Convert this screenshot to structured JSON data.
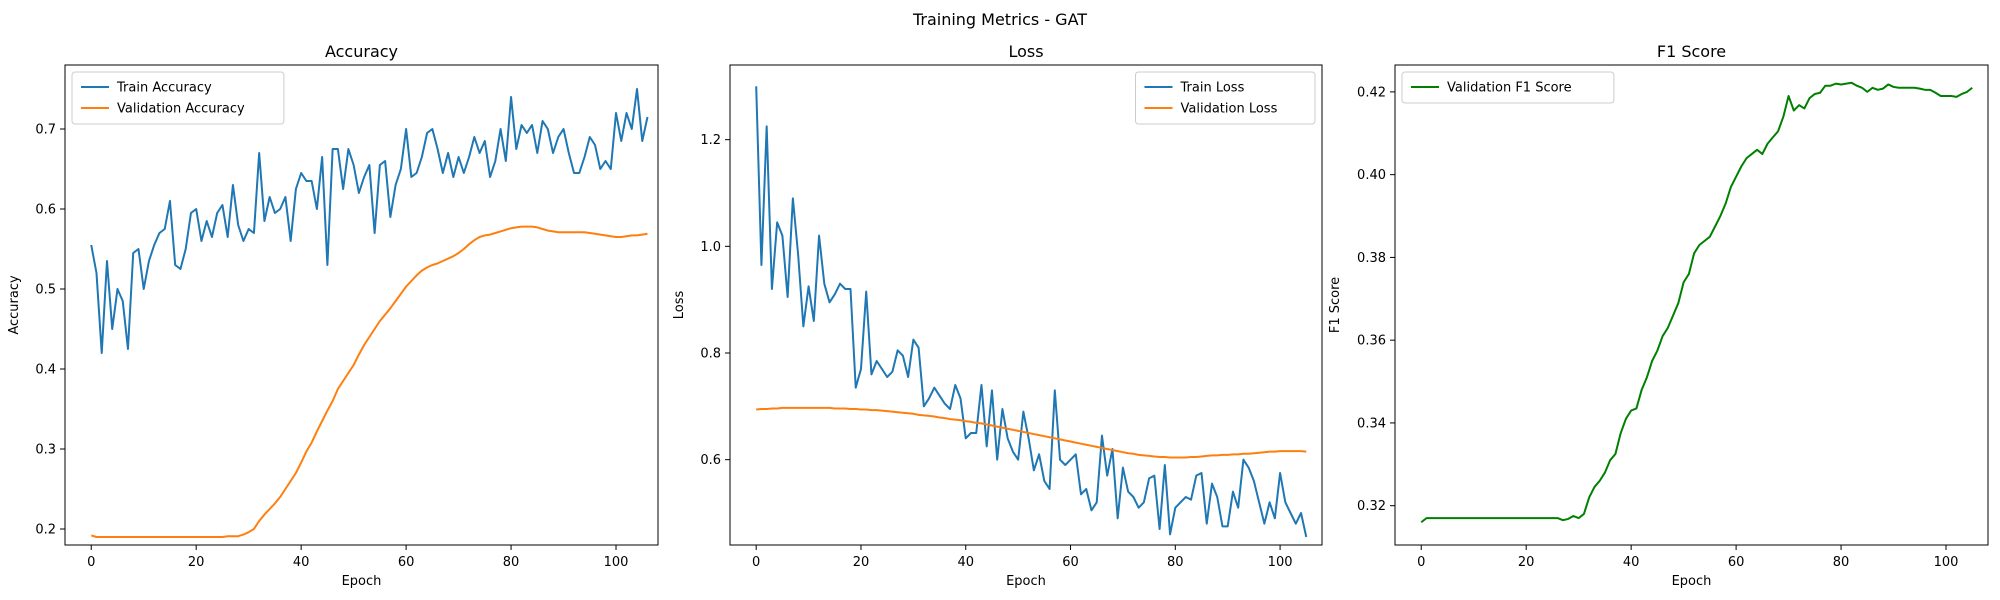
{
  "figure": {
    "title": "Training Metrics - GAT"
  },
  "chart_data": [
    {
      "type": "line",
      "title": "Accuracy",
      "xlabel": "Epoch",
      "ylabel": "Accuracy",
      "xlim": [
        -5,
        108
      ],
      "ylim": [
        0.18,
        0.78
      ],
      "xticks": [
        0,
        20,
        40,
        60,
        80,
        100
      ],
      "yticks": [
        0.2,
        0.3,
        0.4,
        0.5,
        0.6,
        0.7
      ],
      "tick_decimals": 1,
      "legend_position": "upper-left",
      "series": [
        {
          "name": "Train Accuracy",
          "color": "#1f77b4",
          "values": [
            0.555,
            0.52,
            0.42,
            0.535,
            0.45,
            0.5,
            0.485,
            0.425,
            0.545,
            0.55,
            0.5,
            0.535,
            0.555,
            0.57,
            0.575,
            0.61,
            0.53,
            0.525,
            0.55,
            0.595,
            0.6,
            0.56,
            0.585,
            0.565,
            0.595,
            0.605,
            0.565,
            0.63,
            0.58,
            0.56,
            0.575,
            0.57,
            0.67,
            0.585,
            0.615,
            0.595,
            0.6,
            0.615,
            0.56,
            0.625,
            0.645,
            0.635,
            0.635,
            0.6,
            0.665,
            0.53,
            0.675,
            0.675,
            0.625,
            0.675,
            0.655,
            0.62,
            0.64,
            0.655,
            0.57,
            0.655,
            0.66,
            0.59,
            0.63,
            0.65,
            0.7,
            0.64,
            0.645,
            0.665,
            0.695,
            0.7,
            0.675,
            0.645,
            0.67,
            0.64,
            0.665,
            0.645,
            0.665,
            0.69,
            0.67,
            0.685,
            0.64,
            0.66,
            0.7,
            0.66,
            0.74,
            0.675,
            0.705,
            0.695,
            0.705,
            0.67,
            0.71,
            0.7,
            0.67,
            0.69,
            0.7,
            0.67,
            0.645,
            0.645,
            0.665,
            0.69,
            0.68,
            0.65,
            0.66,
            0.65,
            0.72,
            0.685,
            0.72,
            0.7,
            0.75,
            0.685,
            0.715
          ]
        },
        {
          "name": "Validation Accuracy",
          "color": "#ff7f0e",
          "values": [
            0.192,
            0.19,
            0.19,
            0.19,
            0.19,
            0.19,
            0.19,
            0.19,
            0.19,
            0.19,
            0.19,
            0.19,
            0.19,
            0.19,
            0.19,
            0.19,
            0.19,
            0.19,
            0.19,
            0.19,
            0.19,
            0.19,
            0.19,
            0.19,
            0.19,
            0.19,
            0.191,
            0.191,
            0.191,
            0.193,
            0.196,
            0.2,
            0.21,
            0.218,
            0.225,
            0.232,
            0.24,
            0.25,
            0.26,
            0.27,
            0.283,
            0.297,
            0.308,
            0.322,
            0.335,
            0.348,
            0.36,
            0.375,
            0.385,
            0.395,
            0.405,
            0.418,
            0.43,
            0.44,
            0.45,
            0.46,
            0.468,
            0.476,
            0.485,
            0.494,
            0.503,
            0.51,
            0.517,
            0.523,
            0.527,
            0.53,
            0.532,
            0.535,
            0.538,
            0.541,
            0.545,
            0.55,
            0.556,
            0.561,
            0.565,
            0.567,
            0.568,
            0.57,
            0.572,
            0.574,
            0.576,
            0.577,
            0.578,
            0.578,
            0.578,
            0.577,
            0.575,
            0.573,
            0.572,
            0.571,
            0.571,
            0.571,
            0.571,
            0.571,
            0.571,
            0.57,
            0.569,
            0.568,
            0.567,
            0.566,
            0.565,
            0.565,
            0.566,
            0.567,
            0.567,
            0.568,
            0.569
          ]
        }
      ]
    },
    {
      "type": "line",
      "title": "Loss",
      "xlabel": "Epoch",
      "ylabel": "Loss",
      "xlim": [
        -5,
        108
      ],
      "ylim": [
        0.44,
        1.34
      ],
      "xticks": [
        0,
        20,
        40,
        60,
        80,
        100
      ],
      "yticks": [
        0.6,
        0.8,
        1.0,
        1.2
      ],
      "tick_decimals": 1,
      "legend_position": "upper-right",
      "series": [
        {
          "name": "Train Loss",
          "color": "#1f77b4",
          "values": [
            1.3,
            0.965,
            1.225,
            0.92,
            1.045,
            1.02,
            0.905,
            1.09,
            0.985,
            0.85,
            0.925,
            0.86,
            1.02,
            0.93,
            0.895,
            0.91,
            0.93,
            0.92,
            0.92,
            0.735,
            0.77,
            0.915,
            0.76,
            0.785,
            0.77,
            0.755,
            0.765,
            0.805,
            0.795,
            0.755,
            0.825,
            0.81,
            0.7,
            0.715,
            0.735,
            0.72,
            0.705,
            0.695,
            0.74,
            0.715,
            0.64,
            0.65,
            0.65,
            0.74,
            0.625,
            0.73,
            0.6,
            0.695,
            0.64,
            0.615,
            0.6,
            0.69,
            0.64,
            0.58,
            0.61,
            0.56,
            0.545,
            0.73,
            0.6,
            0.59,
            0.6,
            0.61,
            0.535,
            0.545,
            0.505,
            0.52,
            0.645,
            0.57,
            0.62,
            0.49,
            0.585,
            0.54,
            0.53,
            0.51,
            0.52,
            0.565,
            0.57,
            0.47,
            0.59,
            0.46,
            0.51,
            0.52,
            0.53,
            0.525,
            0.57,
            0.575,
            0.48,
            0.555,
            0.53,
            0.475,
            0.475,
            0.54,
            0.51,
            0.6,
            0.585,
            0.56,
            0.52,
            0.48,
            0.52,
            0.49,
            0.575,
            0.52,
            0.5,
            0.48,
            0.5,
            0.455
          ]
        },
        {
          "name": "Validation Loss",
          "color": "#ff7f0e",
          "values": [
            0.694,
            0.695,
            0.695,
            0.696,
            0.696,
            0.697,
            0.697,
            0.697,
            0.697,
            0.697,
            0.697,
            0.697,
            0.697,
            0.697,
            0.697,
            0.696,
            0.696,
            0.696,
            0.695,
            0.695,
            0.694,
            0.694,
            0.693,
            0.693,
            0.692,
            0.691,
            0.69,
            0.689,
            0.688,
            0.687,
            0.686,
            0.684,
            0.683,
            0.682,
            0.681,
            0.679,
            0.678,
            0.676,
            0.675,
            0.674,
            0.672,
            0.671,
            0.669,
            0.668,
            0.666,
            0.664,
            0.662,
            0.66,
            0.658,
            0.656,
            0.654,
            0.652,
            0.65,
            0.648,
            0.646,
            0.644,
            0.642,
            0.64,
            0.638,
            0.636,
            0.634,
            0.632,
            0.63,
            0.628,
            0.626,
            0.624,
            0.622,
            0.62,
            0.618,
            0.616,
            0.614,
            0.612,
            0.611,
            0.609,
            0.608,
            0.607,
            0.606,
            0.605,
            0.605,
            0.604,
            0.604,
            0.604,
            0.604,
            0.605,
            0.605,
            0.606,
            0.607,
            0.608,
            0.608,
            0.609,
            0.609,
            0.61,
            0.61,
            0.611,
            0.611,
            0.612,
            0.613,
            0.614,
            0.615,
            0.615,
            0.616,
            0.616,
            0.616,
            0.616,
            0.616,
            0.615
          ]
        }
      ]
    },
    {
      "type": "line",
      "title": "F1 Score",
      "xlabel": "Epoch",
      "ylabel": "F1 Score",
      "xlim": [
        -5,
        108
      ],
      "ylim": [
        0.3105,
        0.4265
      ],
      "xticks": [
        0,
        20,
        40,
        60,
        80,
        100
      ],
      "yticks": [
        0.32,
        0.34,
        0.36,
        0.38,
        0.4,
        0.42
      ],
      "tick_decimals": 2,
      "legend_position": "upper-left",
      "series": [
        {
          "name": "Validation F1 Score",
          "color": "#008000",
          "values": [
            0.316,
            0.317,
            0.317,
            0.317,
            0.317,
            0.317,
            0.317,
            0.317,
            0.317,
            0.317,
            0.317,
            0.317,
            0.317,
            0.317,
            0.317,
            0.317,
            0.317,
            0.317,
            0.317,
            0.317,
            0.317,
            0.317,
            0.317,
            0.317,
            0.317,
            0.317,
            0.317,
            0.3165,
            0.3168,
            0.3175,
            0.317,
            0.318,
            0.322,
            0.3245,
            0.326,
            0.328,
            0.331,
            0.3325,
            0.3375,
            0.341,
            0.343,
            0.3435,
            0.348,
            0.351,
            0.355,
            0.3575,
            0.361,
            0.363,
            0.366,
            0.369,
            0.374,
            0.376,
            0.381,
            0.383,
            0.384,
            0.385,
            0.3875,
            0.39,
            0.393,
            0.397,
            0.3995,
            0.402,
            0.404,
            0.405,
            0.406,
            0.405,
            0.4075,
            0.409,
            0.4105,
            0.414,
            0.419,
            0.4155,
            0.4168,
            0.416,
            0.4185,
            0.4195,
            0.4198,
            0.4215,
            0.4215,
            0.422,
            0.4218,
            0.422,
            0.4222,
            0.4215,
            0.421,
            0.42,
            0.421,
            0.4205,
            0.4208,
            0.4218,
            0.4212,
            0.421,
            0.421,
            0.421,
            0.421,
            0.4208,
            0.4205,
            0.4205,
            0.4198,
            0.419,
            0.419,
            0.419,
            0.4188,
            0.4195,
            0.42,
            0.421
          ]
        }
      ]
    }
  ]
}
